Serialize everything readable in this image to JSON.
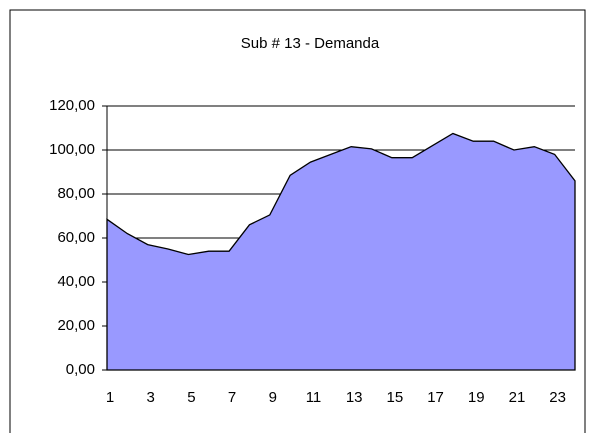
{
  "chart_data": {
    "type": "area",
    "title": "Sub # 13 - Demanda",
    "categories": [
      "1",
      null,
      "3",
      null,
      "5",
      null,
      "7",
      null,
      "9",
      null,
      "11",
      null,
      "13",
      null,
      "15",
      null,
      "17",
      null,
      "19",
      null,
      "21",
      null,
      "23",
      null
    ],
    "values": [
      68.5,
      62,
      57,
      55,
      52.5,
      54,
      54,
      66,
      70.5,
      88.5,
      94.5,
      98,
      101.5,
      100.5,
      96.5,
      96.5,
      102,
      107.5,
      104,
      104,
      100,
      101.5,
      98,
      86
    ],
    "color": "#9999ff",
    "ylim": [
      0,
      120
    ],
    "yticks": [
      {
        "value": 0,
        "label": "0,00"
      },
      {
        "value": 20,
        "label": "20,00"
      },
      {
        "value": 40,
        "label": "40,00"
      },
      {
        "value": 60,
        "label": "60,00"
      },
      {
        "value": 80,
        "label": "80,00"
      },
      {
        "value": 100,
        "label": "100,00"
      },
      {
        "value": 120,
        "label": "120,00"
      }
    ],
    "grid": true
  }
}
